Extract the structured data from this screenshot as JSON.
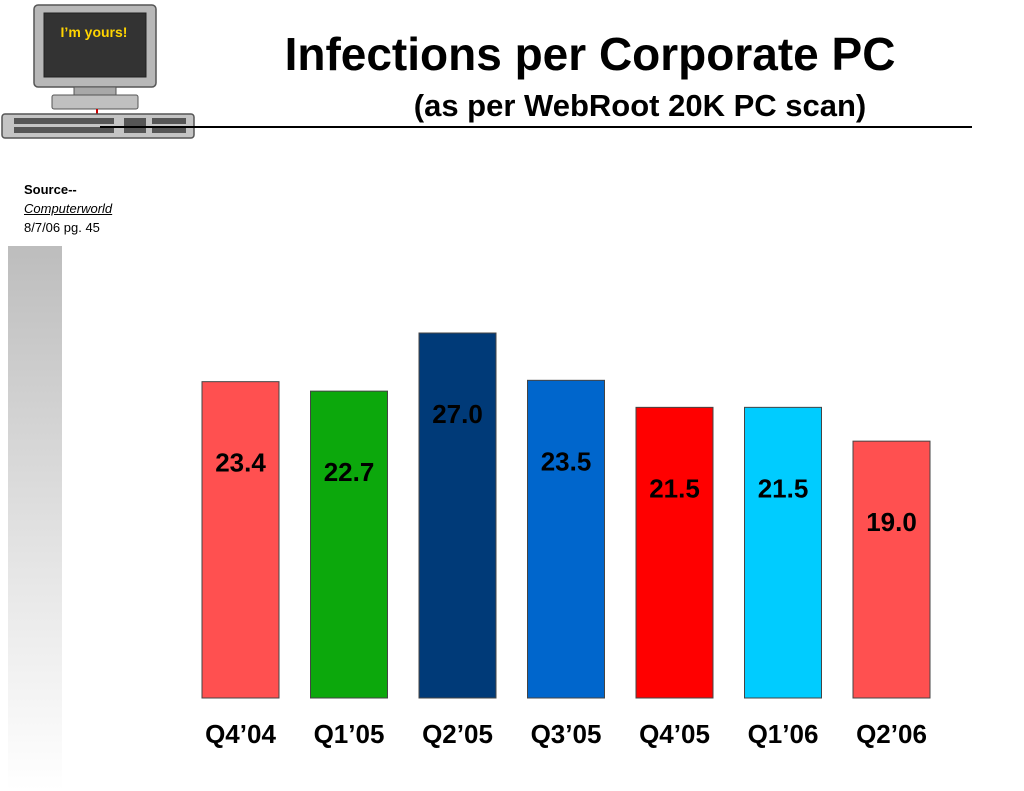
{
  "title": "Infections per Corporate PC",
  "subtitle": "(as per WebRoot 20K PC scan)",
  "source": {
    "label": "Source--",
    "publication": "Computerworld",
    "date": "8/7/06 pg. 45"
  },
  "clipart": {
    "screen_text": "I’m yours!",
    "icon": "computer-icon"
  },
  "chart_data": {
    "type": "bar",
    "title": "",
    "xlabel": "",
    "ylabel": "",
    "ylim": [
      0,
      27
    ],
    "grid": false,
    "categories": [
      "Q4’04",
      "Q1’05",
      "Q2’05",
      "Q3’05",
      "Q4’05",
      "Q1’06",
      "Q2’06"
    ],
    "values": [
      23.4,
      22.7,
      27.0,
      23.5,
      21.5,
      21.5,
      19.0
    ],
    "labels": [
      "23.4",
      "22.7",
      "27.0",
      "23.5",
      "21.5",
      "21.5",
      "19.0"
    ],
    "colors": [
      "#ff5050",
      "#0ca80c",
      "#003a78",
      "#0066cc",
      "#ff0000",
      "#00ccff",
      "#ff5050"
    ]
  }
}
